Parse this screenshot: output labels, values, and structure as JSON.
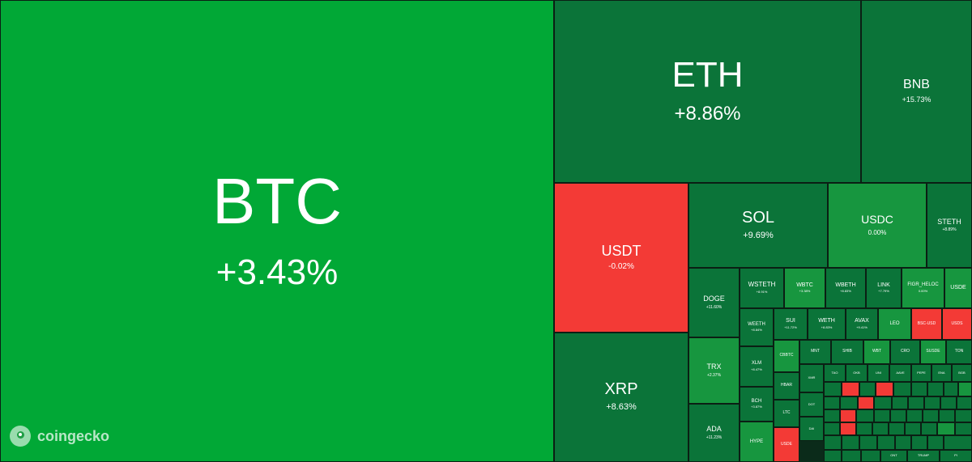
{
  "chart_data": {
    "type": "heatmap",
    "colors": {
      "strong_green": "#01a836",
      "mid_green": "#17963f",
      "dark_green": "#0b7439",
      "red": "#f33a36",
      "dark_red": "#c01f2b"
    },
    "tiles": [
      {
        "symbol": "BTC",
        "change": "+3.43%",
        "color": "strong_green"
      },
      {
        "symbol": "ETH",
        "change": "+8.86%",
        "color": "dark_green"
      },
      {
        "symbol": "BNB",
        "change": "+15.73%",
        "color": "dark_green"
      },
      {
        "symbol": "USDT",
        "change": "-0.02%",
        "color": "red"
      },
      {
        "symbol": "SOL",
        "change": "+9.69%",
        "color": "dark_green"
      },
      {
        "symbol": "USDC",
        "change": "0.00%",
        "color": "mid_green"
      },
      {
        "symbol": "STETH",
        "change": "+8.89%",
        "color": "dark_green"
      },
      {
        "symbol": "XRP",
        "change": "+8.63%",
        "color": "dark_green"
      },
      {
        "symbol": "DOGE",
        "change": "+11.60%",
        "color": "dark_green"
      },
      {
        "symbol": "WSTETH",
        "change": "+8.91%",
        "color": "dark_green"
      },
      {
        "symbol": "WBTC",
        "change": "+3.38%",
        "color": "mid_green"
      },
      {
        "symbol": "WBETH",
        "change": "+8.83%",
        "color": "dark_green"
      },
      {
        "symbol": "LINK",
        "change": "+7.79%",
        "color": "dark_green"
      },
      {
        "symbol": "FIGR_HELOC",
        "change": "0.00%",
        "color": "mid_green"
      },
      {
        "symbol": "USDE",
        "change": "",
        "color": "mid_green"
      },
      {
        "symbol": "TRX",
        "change": "+2.37%",
        "color": "mid_green"
      },
      {
        "symbol": "WEETH",
        "change": "+8.84%",
        "color": "dark_green"
      },
      {
        "symbol": "SUI",
        "change": "+11.72%",
        "color": "dark_green"
      },
      {
        "symbol": "WETH",
        "change": "+8.83%",
        "color": "dark_green"
      },
      {
        "symbol": "AVAX",
        "change": "+9.41%",
        "color": "dark_green"
      },
      {
        "symbol": "LEO",
        "change": "",
        "color": "mid_green"
      },
      {
        "symbol": "BSC-USD",
        "change": "",
        "color": "red"
      },
      {
        "symbol": "USDS",
        "change": "",
        "color": "red"
      },
      {
        "symbol": "XLM",
        "change": "+8.47%",
        "color": "dark_green"
      },
      {
        "symbol": "CBBTC",
        "change": "",
        "color": "mid_green"
      },
      {
        "symbol": "MNT",
        "change": "",
        "color": "dark_green"
      },
      {
        "symbol": "SHIB",
        "change": "",
        "color": "dark_green"
      },
      {
        "symbol": "WBT",
        "change": "",
        "color": "mid_green"
      },
      {
        "symbol": "CRO",
        "change": "",
        "color": "dark_green"
      },
      {
        "symbol": "SUSDE",
        "change": "",
        "color": "mid_green"
      },
      {
        "symbol": "TON",
        "change": "",
        "color": "dark_green"
      },
      {
        "symbol": "ADA",
        "change": "+11.23%",
        "color": "dark_green"
      },
      {
        "symbol": "BCH",
        "change": "+3.87%",
        "color": "dark_green"
      },
      {
        "symbol": "HBAR",
        "change": "",
        "color": "dark_green"
      },
      {
        "symbol": "LTC",
        "change": "",
        "color": "dark_green"
      },
      {
        "symbol": "HYPE",
        "change": "",
        "color": "mid_green"
      },
      {
        "symbol": "USDE",
        "change": "",
        "color": "red"
      },
      {
        "symbol": "XMR",
        "change": "",
        "color": "dark_green"
      },
      {
        "symbol": "DOT",
        "change": "",
        "color": "dark_green"
      },
      {
        "symbol": "DAI",
        "change": "",
        "color": "dark_green"
      },
      {
        "symbol": "TAO",
        "change": "",
        "color": "dark_green"
      },
      {
        "symbol": "OKB",
        "change": "",
        "color": "dark_green"
      },
      {
        "symbol": "UNI",
        "change": "",
        "color": "dark_green"
      },
      {
        "symbol": "AAVE",
        "change": "",
        "color": "dark_green"
      },
      {
        "symbol": "PEPE",
        "change": "",
        "color": "dark_green"
      },
      {
        "symbol": "ENA",
        "change": "",
        "color": "dark_green"
      },
      {
        "symbol": "BGB",
        "change": "",
        "color": "dark_green"
      },
      {
        "symbol": "ONT",
        "change": "",
        "color": "dark_green"
      },
      {
        "symbol": "TRUMP",
        "change": "",
        "color": "dark_green"
      },
      {
        "symbol": "PI",
        "change": "",
        "color": "dark_green"
      }
    ]
  },
  "brand": {
    "name": "coingecko",
    "icon": "gecko-logo-icon"
  }
}
